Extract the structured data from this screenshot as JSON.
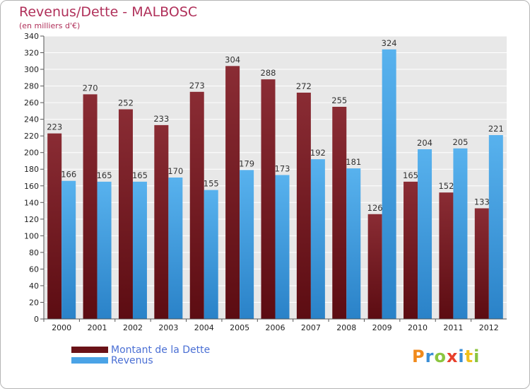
{
  "chart_data": {
    "type": "bar",
    "title": "Revenus/Dette - MALBOSC",
    "subtitle": "(en milliers d'€)",
    "categories": [
      "2000",
      "2001",
      "2002",
      "2003",
      "2004",
      "2005",
      "2006",
      "2007",
      "2008",
      "2009",
      "2010",
      "2011",
      "2012"
    ],
    "series": [
      {
        "name": "Montant de la Dette",
        "color": "#7a1e26",
        "values": [
          223,
          270,
          252,
          233,
          273,
          304,
          288,
          272,
          255,
          126,
          165,
          152,
          133
        ]
      },
      {
        "name": "Revenus",
        "color": "#4aa3e6",
        "values": [
          166,
          165,
          165,
          170,
          155,
          179,
          173,
          192,
          181,
          324,
          204,
          205,
          221
        ]
      }
    ],
    "ylim": [
      0,
      340
    ],
    "yticks": [
      0,
      20,
      40,
      60,
      80,
      100,
      120,
      140,
      160,
      180,
      200,
      220,
      240,
      260,
      280,
      300,
      320,
      340
    ],
    "grid": true,
    "legend_position": "bottom-left"
  },
  "logo": {
    "letters": [
      "P",
      "r",
      "o",
      "x",
      "i",
      "t",
      "i"
    ],
    "colors": [
      "#f08a1c",
      "#3a8ed6",
      "#8bc53f",
      "#e8402c",
      "#3a8ed6",
      "#f0c01c",
      "#8bc53f"
    ]
  }
}
